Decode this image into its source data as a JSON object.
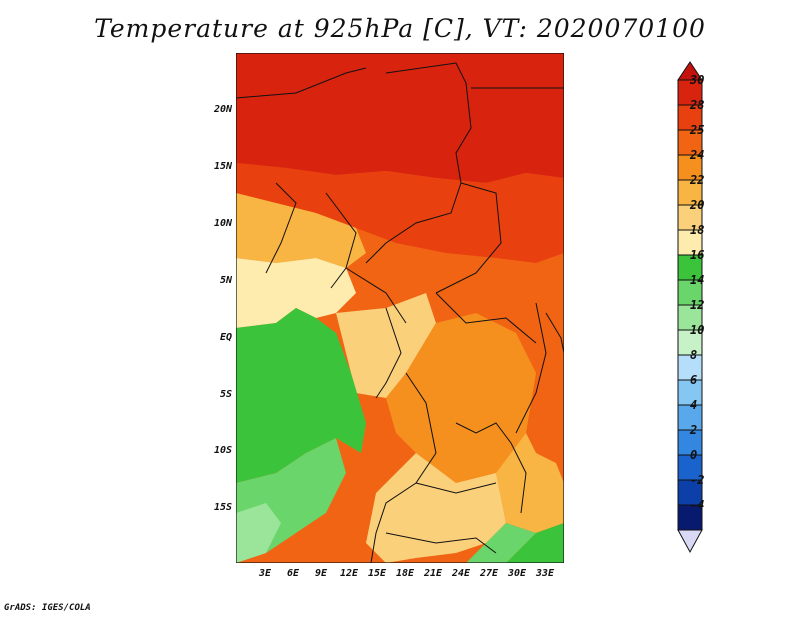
{
  "title": "Temperature at 925hPa [C], VT: 2020070100",
  "footer": "GrADS: IGES/COLA",
  "map": {
    "lat_labels": [
      "20N",
      "15N",
      "10N",
      "5N",
      "EQ",
      "5S",
      "10S",
      "15S"
    ],
    "lon_labels": [
      "3E",
      "6E",
      "9E",
      "12E",
      "15E",
      "18E",
      "21E",
      "24E",
      "27E",
      "30E",
      "33E"
    ],
    "lon_range": [
      0,
      35
    ],
    "lat_range": [
      -20,
      25
    ]
  },
  "colorbar": {
    "labels": [
      "30",
      "28",
      "25",
      "24",
      "22",
      "20",
      "18",
      "16",
      "14",
      "12",
      "10",
      "8",
      "6",
      "4",
      "2",
      "0",
      "-2",
      "-4"
    ],
    "colors": [
      "#d8230f",
      "#e8400f",
      "#f06414",
      "#f5901f",
      "#f9b543",
      "#fbd07a",
      "#fdecad",
      "#3cc33c",
      "#6ad56a",
      "#9be59b",
      "#c7f2c7",
      "#b4def9",
      "#86c6f3",
      "#5aa8ec",
      "#3487e0",
      "#1a62cc",
      "#0c3fa8",
      "#081a6e"
    ],
    "top_arrow_color": "#c3130c",
    "bottom_arrow_color": "#d9d9f5"
  }
}
